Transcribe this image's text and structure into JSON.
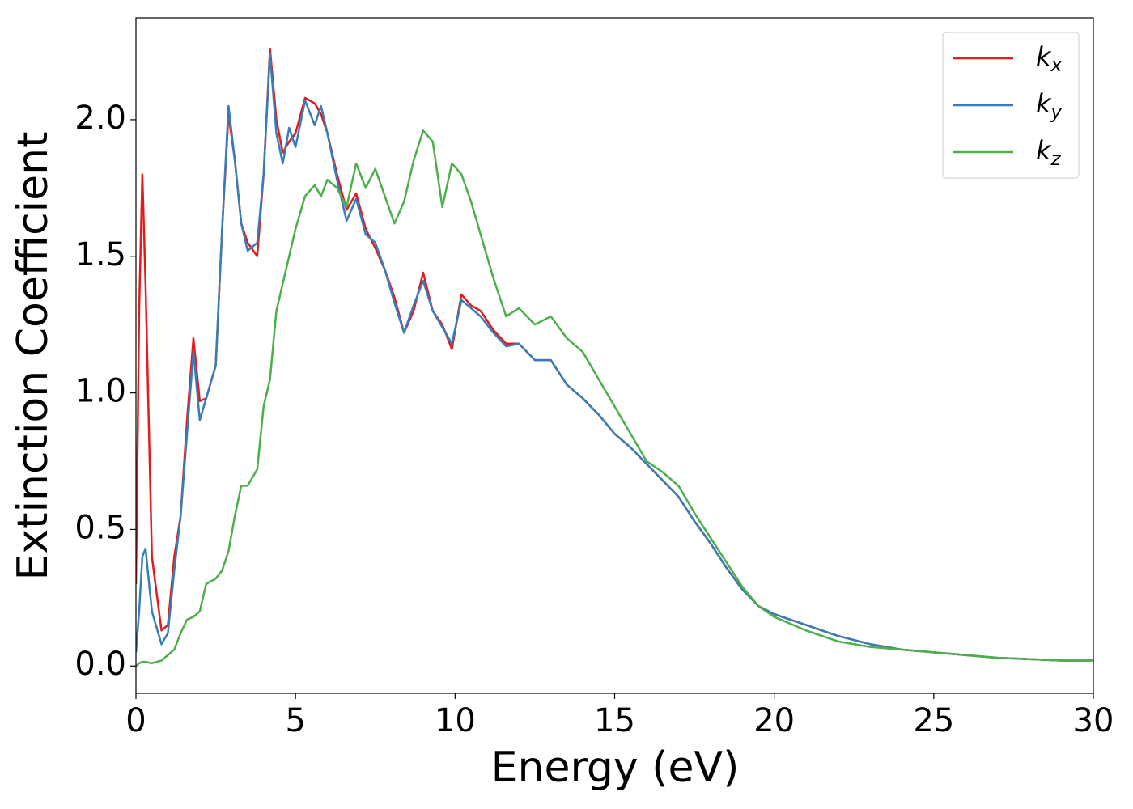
{
  "chart_data": {
    "type": "line",
    "xlabel": "Energy (eV)",
    "ylabel": "Extinction Coefficient",
    "x": [
      0,
      0.1,
      0.2,
      0.3,
      0.5,
      0.8,
      1.0,
      1.2,
      1.4,
      1.6,
      1.8,
      2.0,
      2.2,
      2.5,
      2.7,
      2.9,
      3.1,
      3.3,
      3.5,
      3.8,
      4.0,
      4.2,
      4.4,
      4.6,
      4.8,
      5.0,
      5.3,
      5.6,
      5.8,
      6.0,
      6.3,
      6.6,
      6.9,
      7.2,
      7.5,
      7.8,
      8.1,
      8.4,
      8.7,
      9.0,
      9.3,
      9.6,
      9.9,
      10.2,
      10.5,
      10.8,
      11.2,
      11.6,
      12.0,
      12.5,
      13.0,
      13.5,
      14,
      14.5,
      15,
      15.5,
      16,
      16.5,
      17,
      17.5,
      18,
      18.5,
      19,
      19.5,
      20,
      21,
      22,
      23,
      24,
      25,
      26,
      27,
      28,
      29,
      30
    ],
    "series": [
      {
        "name": "kx",
        "color": "#e41a1c",
        "values": [
          0.3,
          1.3,
          1.8,
          1.4,
          0.4,
          0.13,
          0.15,
          0.4,
          0.55,
          0.9,
          1.2,
          0.97,
          0.98,
          1.1,
          1.6,
          2.02,
          1.85,
          1.62,
          1.55,
          1.5,
          1.8,
          2.26,
          2.0,
          1.88,
          1.92,
          1.95,
          2.08,
          2.06,
          2.02,
          1.95,
          1.8,
          1.67,
          1.73,
          1.6,
          1.53,
          1.45,
          1.35,
          1.22,
          1.3,
          1.44,
          1.3,
          1.25,
          1.16,
          1.36,
          1.32,
          1.3,
          1.23,
          1.18,
          1.18,
          1.12,
          1.12,
          1.03,
          0.98,
          0.92,
          0.85,
          0.8,
          0.74,
          0.68,
          0.62,
          0.53,
          0.45,
          0.36,
          0.28,
          0.22,
          0.19,
          0.15,
          0.11,
          0.08,
          0.06,
          0.05,
          0.04,
          0.03,
          0.025,
          0.02,
          0.02
        ]
      },
      {
        "name": "ky",
        "color": "#377eb8",
        "values": [
          0.05,
          0.2,
          0.4,
          0.43,
          0.2,
          0.08,
          0.12,
          0.35,
          0.55,
          0.85,
          1.15,
          0.9,
          0.98,
          1.1,
          1.6,
          2.05,
          1.85,
          1.62,
          1.52,
          1.55,
          1.8,
          2.24,
          1.95,
          1.84,
          1.97,
          1.9,
          2.07,
          1.98,
          2.05,
          1.95,
          1.78,
          1.63,
          1.71,
          1.58,
          1.55,
          1.45,
          1.33,
          1.22,
          1.32,
          1.41,
          1.3,
          1.24,
          1.18,
          1.34,
          1.31,
          1.28,
          1.22,
          1.17,
          1.18,
          1.12,
          1.12,
          1.03,
          0.98,
          0.92,
          0.85,
          0.8,
          0.74,
          0.68,
          0.62,
          0.53,
          0.45,
          0.36,
          0.28,
          0.22,
          0.19,
          0.15,
          0.11,
          0.08,
          0.06,
          0.05,
          0.04,
          0.03,
          0.025,
          0.02,
          0.02
        ]
      },
      {
        "name": "kz",
        "color": "#4daf4a",
        "values": [
          0,
          0.01,
          0.015,
          0.015,
          0.01,
          0.02,
          0.04,
          0.06,
          0.12,
          0.17,
          0.18,
          0.2,
          0.3,
          0.32,
          0.35,
          0.42,
          0.55,
          0.66,
          0.66,
          0.72,
          0.95,
          1.05,
          1.3,
          1.4,
          1.5,
          1.6,
          1.72,
          1.76,
          1.72,
          1.78,
          1.75,
          1.68,
          1.84,
          1.75,
          1.82,
          1.72,
          1.62,
          1.7,
          1.85,
          1.96,
          1.92,
          1.68,
          1.84,
          1.8,
          1.7,
          1.58,
          1.42,
          1.28,
          1.31,
          1.25,
          1.28,
          1.2,
          1.15,
          1.05,
          0.95,
          0.85,
          0.75,
          0.71,
          0.66,
          0.56,
          0.47,
          0.38,
          0.29,
          0.22,
          0.18,
          0.13,
          0.09,
          0.07,
          0.06,
          0.05,
          0.04,
          0.03,
          0.025,
          0.02,
          0.02
        ]
      }
    ],
    "xlim": [
      0,
      30
    ],
    "xticks": [
      0,
      5,
      10,
      15,
      20,
      25,
      30
    ],
    "ylim": [
      -0.1,
      2.373
    ],
    "yticks": [
      {
        "value": 0,
        "label": "0.0"
      },
      0.5,
      {
        "value": 1,
        "label": "1.0"
      },
      1.5,
      {
        "value": 2,
        "label": "2.0"
      }
    ],
    "grid": false,
    "legend": "upper right"
  }
}
